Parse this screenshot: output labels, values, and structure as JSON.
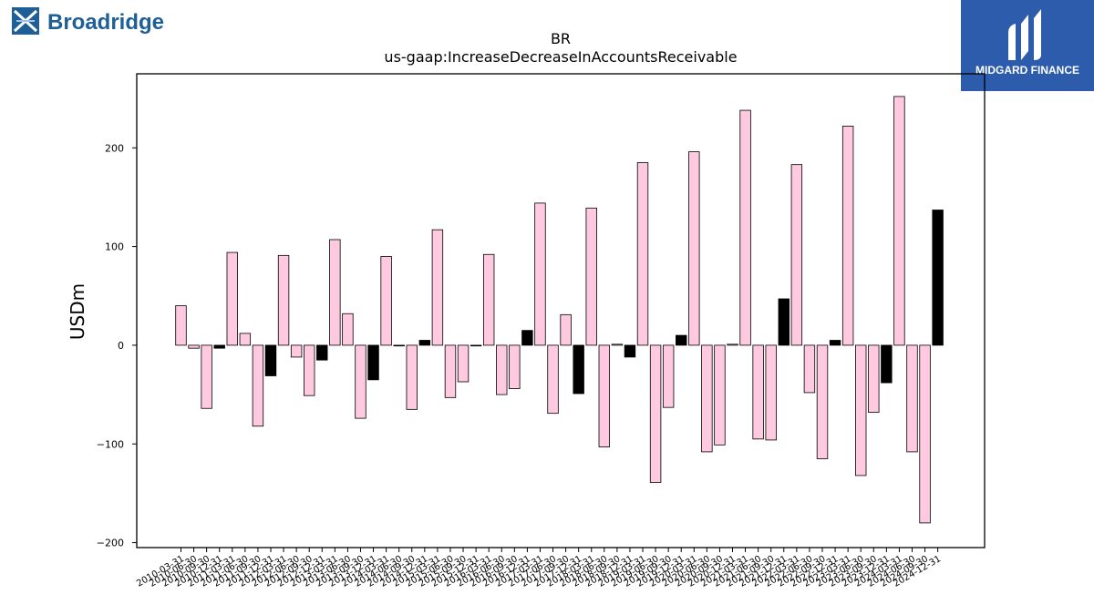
{
  "brand": {
    "name": "Broadridge",
    "color": "#1f5f97"
  },
  "sponsor": {
    "name": "MIDGARD FINANCE",
    "color": "#2d5cad"
  },
  "chart_data": {
    "type": "bar",
    "title": "BR",
    "subtitle": "us-gaap:IncreaseDecreaseInAccountsReceivable",
    "xlabel": "",
    "ylabel": "USDm",
    "ylim": [
      -205,
      275
    ],
    "yticks": [
      -200,
      -100,
      0,
      100,
      200
    ],
    "grid": false,
    "colors": {
      "period": "#ffc9e0",
      "annual": "#000000",
      "edge": "#000000"
    },
    "categories": [
      "2010-03-31",
      "2010-06-30",
      "2010-09-30",
      "2010-12-31",
      "2011-03-31",
      "2011-06-30",
      "2011-09-30",
      "2011-12-31",
      "2012-03-31",
      "2012-06-30",
      "2012-09-30",
      "2012-12-31",
      "2013-03-31",
      "2013-06-30",
      "2013-09-30",
      "2013-12-31",
      "2014-03-31",
      "2014-06-30",
      "2014-09-30",
      "2014-12-31",
      "2015-03-31",
      "2015-06-30",
      "2015-09-30",
      "2015-12-31",
      "2016-03-31",
      "2016-06-30",
      "2016-09-30",
      "2016-12-31",
      "2017-03-31",
      "2017-06-30",
      "2017-09-30",
      "2017-12-31",
      "2018-03-31",
      "2018-06-30",
      "2018-09-30",
      "2018-12-31",
      "2019-03-31",
      "2019-06-30",
      "2019-09-30",
      "2019-12-31",
      "2020-03-31",
      "2020-06-30",
      "2020-09-30",
      "2020-12-31",
      "2021-03-31",
      "2021-06-30",
      "2021-09-30",
      "2021-12-31",
      "2022-03-31",
      "2022-06-30",
      "2022-09-30",
      "2022-12-31",
      "2023-03-31",
      "2023-06-30",
      "2023-09-30",
      "2023-12-31",
      "2024-03-31",
      "2024-06-30",
      "2024-09-30",
      "2024-12-31"
    ],
    "values": [
      40,
      -3,
      -64,
      -3,
      94,
      12,
      -82,
      -31,
      91,
      -12,
      -51,
      -15,
      107,
      32,
      -74,
      -35,
      90,
      0,
      -65,
      5,
      117,
      -53,
      -37,
      0,
      92,
      -50,
      -44,
      15,
      144,
      -69,
      31,
      -49,
      139,
      -103,
      1,
      -12,
      185,
      -139,
      -63,
      10,
      196,
      -108,
      -101,
      1,
      238,
      -95,
      -96,
      47,
      183,
      -48,
      -115,
      5,
      222,
      -132,
      -68,
      -38,
      252,
      -108,
      -180,
      137
    ],
    "annual_flags": [
      false,
      false,
      false,
      true,
      false,
      false,
      false,
      true,
      false,
      false,
      false,
      true,
      false,
      false,
      false,
      true,
      false,
      false,
      false,
      true,
      false,
      false,
      false,
      false,
      false,
      false,
      false,
      true,
      false,
      false,
      false,
      true,
      false,
      false,
      false,
      true,
      false,
      false,
      false,
      true,
      false,
      false,
      false,
      false,
      false,
      false,
      false,
      true,
      false,
      false,
      false,
      true,
      false,
      false,
      false,
      true,
      false,
      false,
      false,
      true
    ]
  }
}
